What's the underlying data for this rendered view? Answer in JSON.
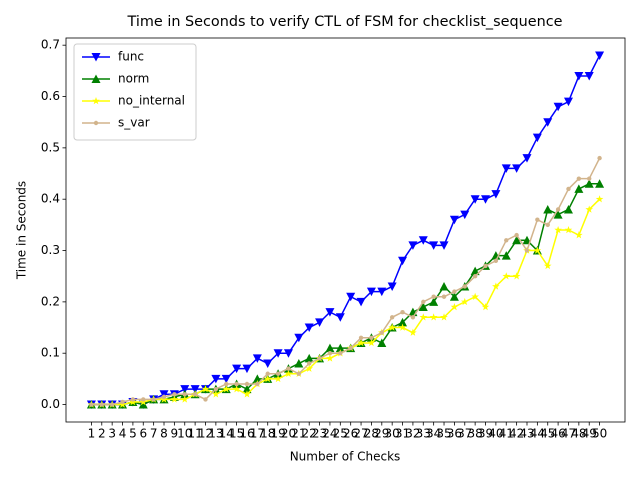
{
  "chart_data": {
    "type": "line",
    "title": "Time in Seconds to verify CTL of FSM for checklist_sequence",
    "xlabel": "Number of Checks",
    "ylabel": "Time in Seconds",
    "categories": [
      "1",
      "2",
      "3",
      "4",
      "5",
      "6",
      "7",
      "8",
      "9",
      "10",
      "11",
      "12",
      "13",
      "14",
      "15",
      "16",
      "17",
      "18",
      "19",
      "20",
      "21",
      "22",
      "23",
      "24",
      "25",
      "26",
      "27",
      "28",
      "29",
      "30",
      "31",
      "32",
      "33",
      "34",
      "35",
      "36",
      "37",
      "38",
      "39",
      "40",
      "41",
      "42",
      "43",
      "44",
      "45",
      "46",
      "47",
      "48",
      "49",
      "50"
    ],
    "series": [
      {
        "name": "func",
        "color": "#0000ff",
        "marker": "v",
        "values": [
          0,
          0,
          0,
          0,
          0.005,
          0,
          0.01,
          0.02,
          0.02,
          0.03,
          0.03,
          0.03,
          0.05,
          0.05,
          0.07,
          0.07,
          0.09,
          0.08,
          0.1,
          0.1,
          0.13,
          0.15,
          0.16,
          0.18,
          0.17,
          0.21,
          0.2,
          0.22,
          0.22,
          0.23,
          0.28,
          0.31,
          0.32,
          0.31,
          0.31,
          0.36,
          0.37,
          0.4,
          0.4,
          0.41,
          0.46,
          0.46,
          0.48,
          0.52,
          0.55,
          0.58,
          0.59,
          0.64,
          0.64,
          0.68
        ]
      },
      {
        "name": "norm",
        "color": "#008000",
        "marker": "^",
        "values": [
          0,
          0,
          0,
          0,
          0.005,
          0,
          0.01,
          0.01,
          0.015,
          0.02,
          0.02,
          0.03,
          0.03,
          0.03,
          0.04,
          0.03,
          0.05,
          0.05,
          0.06,
          0.07,
          0.08,
          0.09,
          0.09,
          0.11,
          0.11,
          0.11,
          0.12,
          0.13,
          0.12,
          0.15,
          0.16,
          0.18,
          0.19,
          0.2,
          0.23,
          0.21,
          0.23,
          0.26,
          0.27,
          0.29,
          0.29,
          0.32,
          0.32,
          0.3,
          0.38,
          0.37,
          0.38,
          0.42,
          0.43,
          0.43
        ]
      },
      {
        "name": "no_internal",
        "color": "#ffff00",
        "marker": "*",
        "values": [
          0,
          0,
          0,
          0,
          0.005,
          0.005,
          0.01,
          0.01,
          0.01,
          0.01,
          0.02,
          0.03,
          0.02,
          0.03,
          0.03,
          0.02,
          0.04,
          0.05,
          0.05,
          0.06,
          0.06,
          0.07,
          0.09,
          0.09,
          0.1,
          0.11,
          0.12,
          0.12,
          0.14,
          0.15,
          0.15,
          0.14,
          0.17,
          0.17,
          0.17,
          0.19,
          0.2,
          0.21,
          0.19,
          0.23,
          0.25,
          0.25,
          0.3,
          0.3,
          0.27,
          0.34,
          0.34,
          0.33,
          0.38,
          0.4
        ]
      },
      {
        "name": "s_var",
        "color": "#d2b48c",
        "marker": ".",
        "values": [
          0,
          0,
          0,
          0.005,
          0.01,
          0.01,
          0.01,
          0.015,
          0.02,
          0.02,
          0.02,
          0.01,
          0.03,
          0.04,
          0.04,
          0.04,
          0.04,
          0.06,
          0.06,
          0.07,
          0.06,
          0.08,
          0.09,
          0.1,
          0.1,
          0.11,
          0.13,
          0.13,
          0.14,
          0.17,
          0.18,
          0.17,
          0.2,
          0.21,
          0.21,
          0.22,
          0.23,
          0.25,
          0.27,
          0.28,
          0.32,
          0.33,
          0.3,
          0.36,
          0.35,
          0.38,
          0.42,
          0.44,
          0.44,
          0.48
        ]
      }
    ],
    "ylim": [
      -0.034,
      0.714
    ],
    "yticks": [
      {
        "value": 0,
        "label": "0.0"
      },
      {
        "value": 0.1,
        "label": "0.1"
      },
      {
        "value": 0.2,
        "label": "0.2"
      },
      {
        "value": 0.3,
        "label": "0.3"
      },
      {
        "value": 0.4,
        "label": "0.4"
      },
      {
        "value": 0.5,
        "label": "0.5"
      },
      {
        "value": 0.6,
        "label": "0.6"
      },
      {
        "value": 0.7,
        "label": "0.7"
      }
    ],
    "legend": "upper left"
  }
}
